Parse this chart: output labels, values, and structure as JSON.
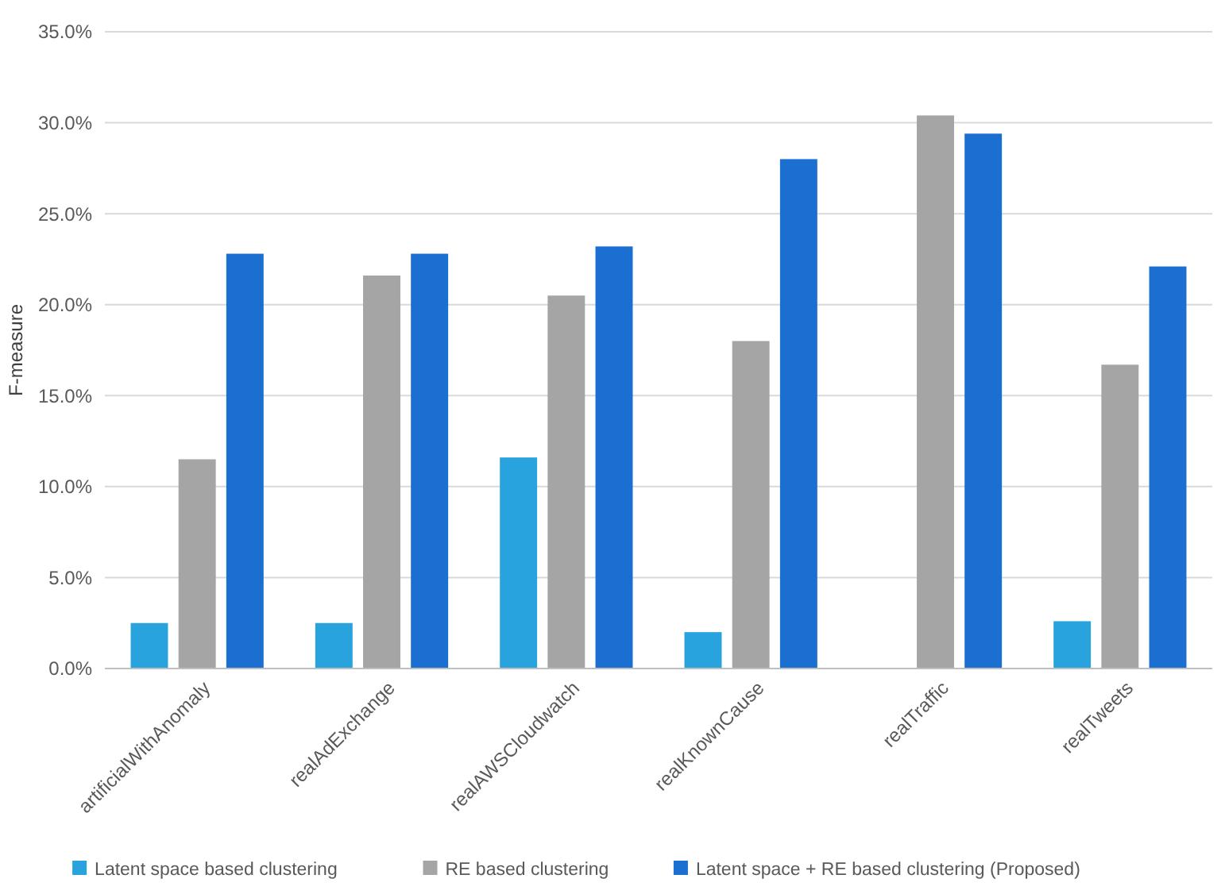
{
  "chart_data": {
    "type": "bar",
    "ylabel": "F-measure",
    "categories": [
      "artificialWithAnomaly",
      "realAdExchange",
      "realAWSCloudwatch",
      "realKnownCause",
      "realTraffic",
      "realTweets"
    ],
    "series": [
      {
        "name": "Latent space based clustering",
        "color": "#29a3dd",
        "values": [
          2.5,
          2.5,
          11.6,
          2.0,
          null,
          2.6
        ]
      },
      {
        "name": "RE based clustering",
        "color": "#a5a5a5",
        "values": [
          11.5,
          21.6,
          20.5,
          18.0,
          30.4,
          16.7
        ]
      },
      {
        "name": "Latent space + RE based clustering (Proposed)",
        "color": "#1a6fd0",
        "values": [
          22.8,
          22.8,
          23.2,
          28.0,
          29.4,
          22.1
        ]
      }
    ],
    "ylim": [
      0,
      35
    ],
    "yticks": [
      {
        "value": 0,
        "label": "0.0%"
      },
      {
        "value": 5,
        "label": "5.0%"
      },
      {
        "value": 10,
        "label": "10.0%"
      },
      {
        "value": 15,
        "label": "15.0%"
      },
      {
        "value": 20,
        "label": "20.0%"
      },
      {
        "value": 25,
        "label": "25.0%"
      },
      {
        "value": 30,
        "label": "30.0%"
      },
      {
        "value": 35,
        "label": "35.0%"
      }
    ],
    "grid": "y",
    "legend": "bottom"
  }
}
